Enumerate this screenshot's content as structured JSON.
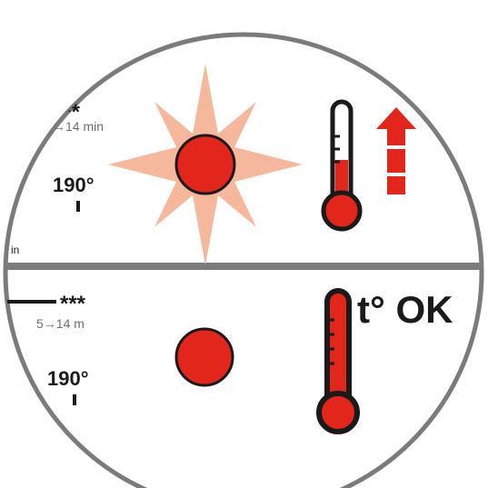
{
  "top": {
    "stars": "***",
    "time": "→14 min",
    "temperature": "190°",
    "side_text": "in"
  },
  "bottom": {
    "stars": "***",
    "time": "5→14 m",
    "temperature": "190°",
    "status": "t° OK"
  },
  "icons": {
    "top_sun": "sun-icon",
    "top_thermometer": "thermometer-rising-icon",
    "top_arrow": "arrow-up-icon",
    "bottom_dot": "heat-dot-icon",
    "bottom_thermometer": "thermometer-full-icon"
  },
  "colors": {
    "red": "#e2261c",
    "sun_rays": "#f6b89c",
    "outline": "#1a1a1a",
    "ring": "#7b7b7b"
  }
}
